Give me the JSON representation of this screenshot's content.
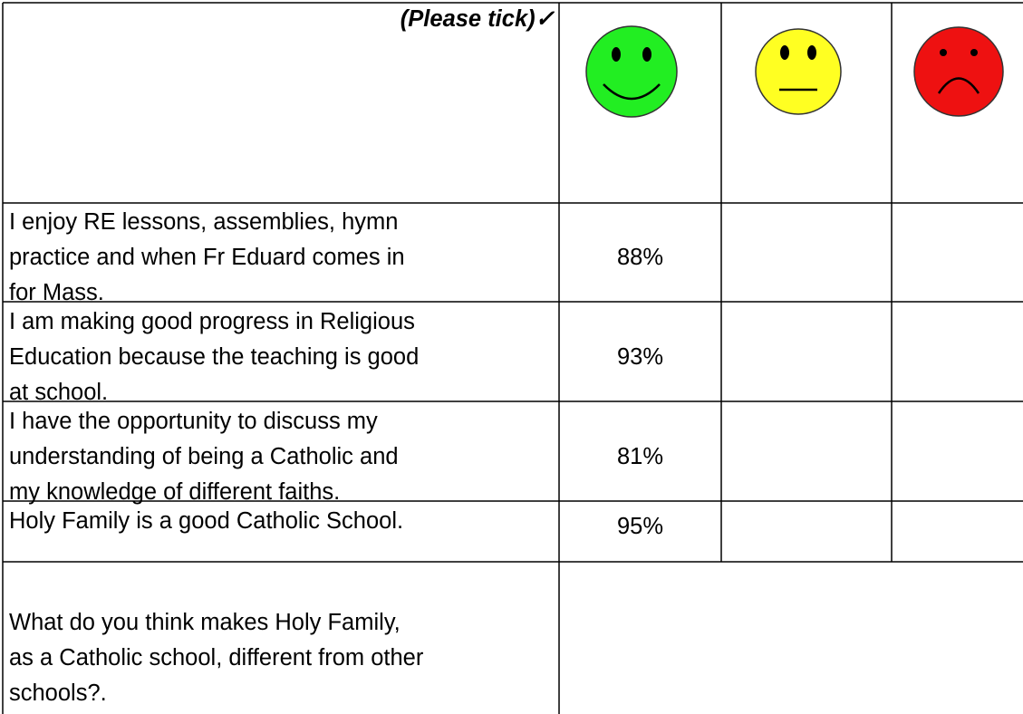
{
  "header": {
    "instruction": "(Please tick)✓"
  },
  "rows": [
    {
      "statement": [
        "I enjoy RE lessons, assemblies, hymn",
        "practice and when Fr Eduard comes in",
        "for Mass."
      ],
      "percent": "88%"
    },
    {
      "statement": [
        "I am making good progress in Religious",
        "Education because the teaching is good",
        "at school."
      ],
      "percent": "93%"
    },
    {
      "statement": [
        "I have the opportunity to discuss my",
        "understanding of being a Catholic and",
        "my knowledge of different faiths."
      ],
      "percent": "81%"
    },
    {
      "statement": [
        "Holy Family is a good Catholic School."
      ],
      "percent": "95%"
    }
  ],
  "question": [
    "What do you think makes Holy Family,",
    "as a Catholic school, different from other",
    "schools?."
  ]
}
